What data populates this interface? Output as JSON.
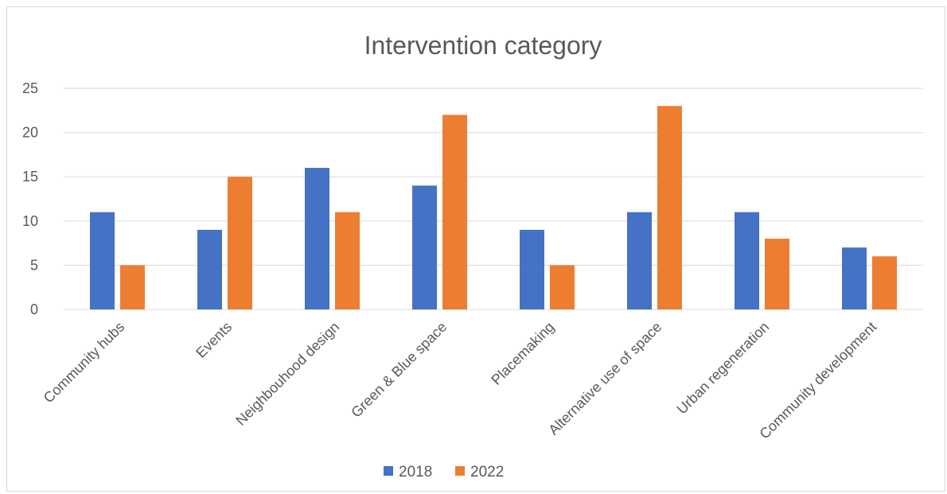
{
  "chart_data": {
    "type": "bar",
    "title": "Intervention category",
    "categories": [
      "Community hubs",
      "Events",
      "Neighbouhood design",
      "Green & Blue space",
      "Placemaking",
      "Alternative use of space",
      "Urban regeneration",
      "Community development"
    ],
    "series": [
      {
        "name": "2018",
        "color": "#4472c4",
        "values": [
          11,
          9,
          16,
          14,
          9,
          11,
          11,
          7
        ]
      },
      {
        "name": "2022",
        "color": "#ed7d31",
        "values": [
          5,
          15,
          11,
          22,
          5,
          23,
          8,
          6
        ]
      }
    ],
    "yticks": [
      "0",
      "5",
      "10",
      "15",
      "20",
      "25"
    ],
    "ylim": [
      0,
      25
    ],
    "grid": true,
    "legend_position": "bottom"
  }
}
